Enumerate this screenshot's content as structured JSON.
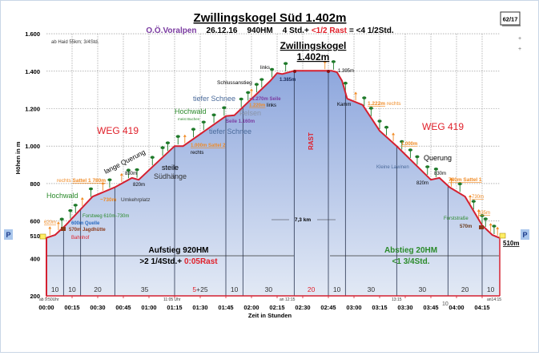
{
  "chart_data": {
    "type": "area",
    "title": "Zwillingskogel Süd 1.402m",
    "subtitle": {
      "region": "O.Ö.Voralpen",
      "date": "26.12.16",
      "hm": "940HM",
      "duration": "4 Std.+",
      "rest": "<1/2 Rast",
      "total": "= <4 1/2Std."
    },
    "badge": "62/17",
    "plus_marks": [
      "+",
      "+"
    ],
    "ylabel": "Höhen in m",
    "xlabel": "Zeit in Stunden",
    "ylim": [
      200,
      1600
    ],
    "xlim_minutes": [
      0,
      265
    ],
    "grid": true,
    "y_ticks": [
      "1.600",
      "1.400",
      "1.200",
      "1.000",
      "800",
      "600",
      "400",
      "200"
    ],
    "y_tick_values": [
      1600,
      1400,
      1200,
      1000,
      800,
      600,
      400,
      200
    ],
    "y_extra_tick": "510",
    "parking_label": "P",
    "x_ticks": [
      "00:00",
      "00:15",
      "00:30",
      "00:45",
      "01:00",
      "01:15",
      "01:30",
      "01:45",
      "02:00",
      "02:15",
      "02:30",
      "02:45",
      "03:00",
      "03:15",
      "03:30",
      "03:45",
      "04:00",
      "04:15"
    ],
    "colors": {
      "line": "#d42030",
      "fill_top": "#8ea7dd",
      "fill_bottom": "#e2e9f5",
      "tree": "#1f7a2a",
      "marker_orange": "#f08a24",
      "red": "#e0202a",
      "green": "#2a8a2a",
      "purple": "#7a3aa0"
    },
    "profile": {
      "minutes": [
        0,
        5,
        11,
        27,
        40,
        50,
        54,
        75,
        80,
        105,
        110,
        131,
        135,
        138,
        145,
        167,
        170,
        173,
        176,
        185,
        195,
        205,
        225,
        230,
        236,
        245,
        255,
        261,
        265
      ],
      "elevation": [
        510,
        525,
        575,
        730,
        780,
        830,
        820,
        1000,
        1000,
        1160,
        1165,
        1348,
        1390,
        1385,
        1402,
        1402,
        1395,
        1348,
        1253,
        1220,
        1082,
        1000,
        820,
        830,
        780,
        730,
        577,
        525,
        510
      ]
    },
    "segment_minutes": [
      10,
      20,
      40,
      75,
      105,
      115,
      145,
      165,
      175,
      205,
      235,
      255,
      265
    ],
    "segment_labels": [
      "10",
      "10",
      "20",
      "35",
      "5",
      "+25",
      "10",
      "30",
      "20",
      "10",
      "30",
      "30",
      "20",
      "10"
    ],
    "extra_segment_label": "10",
    "clock_labels": {
      "start": "ab 9:50Uhr",
      "t1": "11:05 Uhr",
      "summit": "an 12:15",
      "t2": "13:15",
      "end": "an14:15"
    },
    "markers": [
      {
        "t": 2,
        "c": "orange"
      },
      {
        "t": 7,
        "c": "orange"
      },
      {
        "t": 9,
        "c": "green"
      },
      {
        "t": 14,
        "c": "green"
      },
      {
        "t": 17,
        "c": "green"
      },
      {
        "t": 21,
        "c": "orange"
      },
      {
        "t": 26,
        "c": "green"
      },
      {
        "t": 33,
        "c": "orange"
      },
      {
        "t": 37,
        "c": "green"
      },
      {
        "t": 44,
        "c": "orange"
      },
      {
        "t": 48,
        "c": "green"
      },
      {
        "t": 53,
        "c": "green"
      },
      {
        "t": 62,
        "c": "green"
      },
      {
        "t": 68,
        "c": "green"
      },
      {
        "t": 71,
        "c": "green"
      },
      {
        "t": 77,
        "c": "green"
      },
      {
        "t": 81,
        "c": "orange"
      },
      {
        "t": 86,
        "c": "green"
      },
      {
        "t": 92,
        "c": "green"
      },
      {
        "t": 98,
        "c": "green"
      },
      {
        "t": 104,
        "c": "green"
      },
      {
        "t": 114,
        "c": "green"
      },
      {
        "t": 118,
        "c": "green"
      },
      {
        "t": 120,
        "c": "orange"
      },
      {
        "t": 123,
        "c": "green"
      },
      {
        "t": 126,
        "c": "green"
      },
      {
        "t": 132,
        "c": "green"
      },
      {
        "t": 140,
        "c": "green"
      },
      {
        "t": 163,
        "c": "orange"
      },
      {
        "t": 168,
        "c": "green"
      },
      {
        "t": 175,
        "c": "green"
      },
      {
        "t": 181,
        "c": "orange"
      },
      {
        "t": 186,
        "c": "green"
      },
      {
        "t": 190,
        "c": "green"
      },
      {
        "t": 195,
        "c": "green"
      },
      {
        "t": 199,
        "c": "green"
      },
      {
        "t": 203,
        "c": "orange"
      },
      {
        "t": 208,
        "c": "green"
      },
      {
        "t": 213,
        "c": "green"
      },
      {
        "t": 217,
        "c": "green"
      },
      {
        "t": 223,
        "c": "green"
      },
      {
        "t": 228,
        "c": "green"
      },
      {
        "t": 237,
        "c": "orange"
      },
      {
        "t": 242,
        "c": "green"
      },
      {
        "t": 248,
        "c": "orange"
      },
      {
        "t": 250,
        "c": "green"
      },
      {
        "t": 253,
        "c": "orange"
      },
      {
        "t": 255,
        "c": "green"
      },
      {
        "t": 257,
        "c": "green"
      },
      {
        "t": 260,
        "c": "orange"
      },
      {
        "t": 262,
        "c": "green"
      },
      {
        "t": 264,
        "c": "orange"
      }
    ],
    "annotations": {
      "origin": "ab Haid 55km; 3/4Std.",
      "summit_name": "Zwillingskogel",
      "summit_height": "1.402m",
      "links_top": "links",
      "h1385": "1.385m",
      "h1395": "1.395m",
      "schlussanstieg": "Schlussanstieg",
      "tiefer_schnee_1": "tiefer Schnee",
      "seile_1270": "~1.270m Seile",
      "h1220": "1.220m",
      "links": "links",
      "felsen": "Felsen",
      "seile_1160": "Seile 1.160m",
      "hochwald_1": "Hochwald",
      "meist_buchen": "meist Buchen",
      "tiefer_schnee_2": "tiefer Schnee",
      "weg_left": "WEG 419",
      "sattel2": "1.000m Sattel 2",
      "rechts_1": "rechts",
      "steile": "steile",
      "suedhaenge": "Südhänge",
      "lange_querung": "lange Querung",
      "h830_l": "830m",
      "h820_l": "820m",
      "rechts_2": "rechts",
      "sattel1_l": "Sattel 1 780m",
      "hochwald_2": "Hochwald",
      "h730_l": "~730m",
      "umkehrplatz": "Umkehrplatz",
      "forstweg": "Forstweg 610m-730m",
      "h620": "620m",
      "quelle": "600m Quelle",
      "jagdhuette": "570m Jagdhütte",
      "bahnhof": "Bahnhof",
      "kamm": "Kamm",
      "h1222": "1.222m",
      "rechts_3": "rechts",
      "weg_right": "WEG 419",
      "h1000_r": "1.000m",
      "querung": "Querung",
      "kleine_lawinen": "Kleine Lawinen",
      "h830_r": "830m",
      "h820_r": "820m",
      "sattel1_r": "780m Sattel 1",
      "h730_r": "730m",
      "h635": "635m",
      "forststrasse": "Forststraße",
      "h570_r": "570m",
      "end_height": "510m",
      "rast": "RAST",
      "distance": "7,3 km",
      "ascent_title": "Aufstieg 920HM",
      "ascent_time": ">2 1/4Std.+ ",
      "ascent_rest": "0:05Rast",
      "descent_title": "Abstieg 20HM",
      "descent_time": "<1 3/4Std."
    }
  }
}
